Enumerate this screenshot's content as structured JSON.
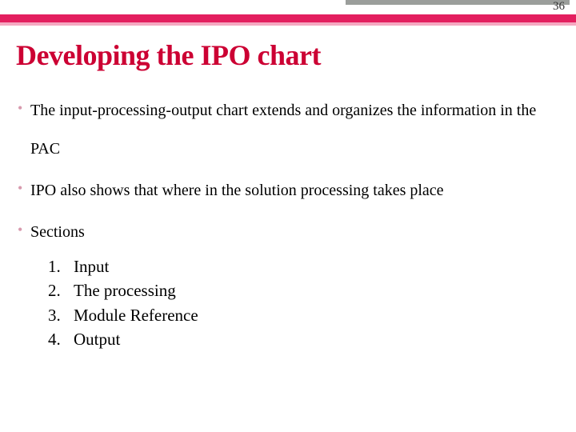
{
  "page_number": "36",
  "title": "Developing the IPO chart",
  "bullets": [
    "The input-processing-output chart extends and organizes the information in the PAC",
    "IPO also shows that where in the solution processing takes place",
    "Sections"
  ],
  "numbered": [
    {
      "n": "1.",
      "t": "Input"
    },
    {
      "n": "2.",
      "t": "The processing"
    },
    {
      "n": "3.",
      "t": "Module Reference"
    },
    {
      "n": "4.",
      "t": "Output"
    }
  ],
  "colors": {
    "pink_bar": "#e31f5f",
    "pink_light": "#f5a8c1",
    "gray_bar": "#9b9e9b",
    "title_color": "#cc0033",
    "bullet_marker": "#d89aae"
  }
}
